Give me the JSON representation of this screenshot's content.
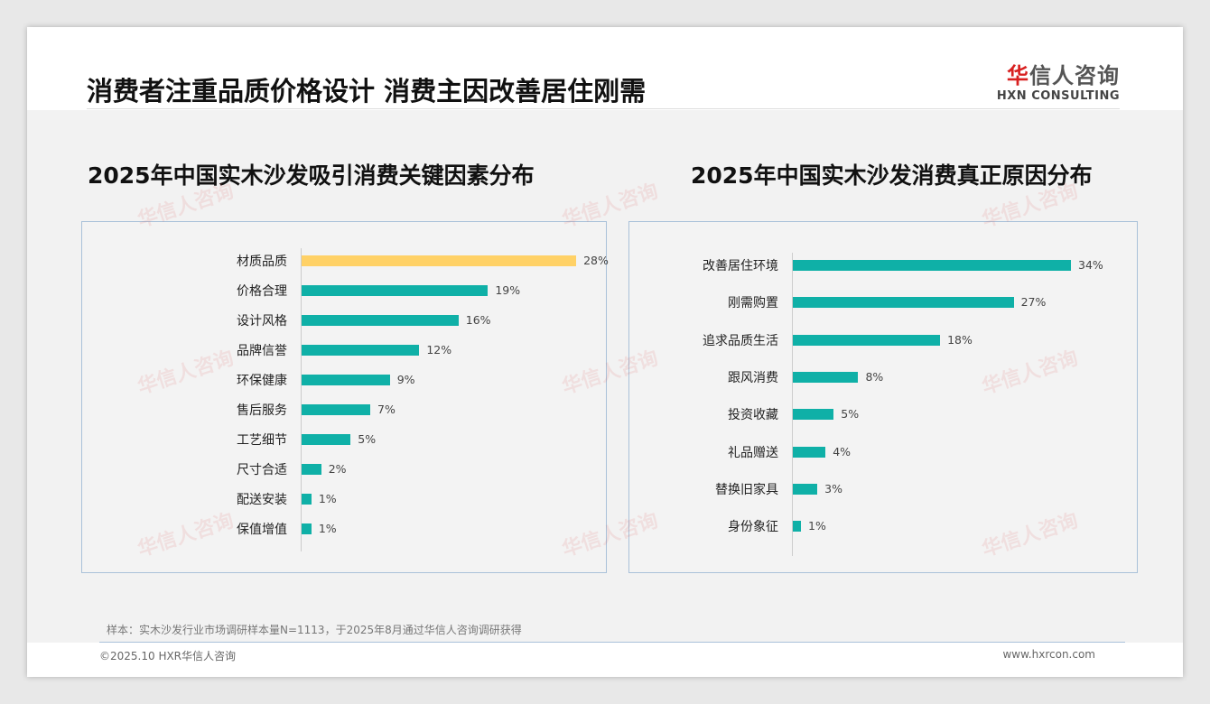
{
  "header": {
    "title": "消费者注重品质价格设计 消费主因改善居住刚需",
    "logo_cn": "华信人咨询",
    "logo_en": "HXN CONSULTING"
  },
  "colors": {
    "bar": "#0fb0a7",
    "highlight": "#ffd166"
  },
  "chart_data": [
    {
      "type": "bar",
      "orientation": "horizontal",
      "title": "2025年中国实木沙发吸引消费关键因素分布",
      "categories": [
        "材质品质",
        "价格合理",
        "设计风格",
        "品牌信誉",
        "环保健康",
        "售后服务",
        "工艺细节",
        "尺寸合适",
        "配送安装",
        "保值增值"
      ],
      "values": [
        28,
        19,
        16,
        12,
        9,
        7,
        5,
        2,
        1,
        1
      ],
      "unit": "%",
      "highlight_index": 0
    },
    {
      "type": "bar",
      "orientation": "horizontal",
      "title": "2025年中国实木沙发消费真正原因分布",
      "categories": [
        "改善居住环境",
        "刚需购置",
        "追求品质生活",
        "跟风消费",
        "投资收藏",
        "礼品赠送",
        "替换旧家具",
        "身份象征"
      ],
      "values": [
        34,
        27,
        18,
        8,
        5,
        4,
        3,
        1
      ],
      "unit": "%"
    }
  ],
  "footer": {
    "note": "样本：实木沙发行业市场调研样本量N=1113，于2025年8月通过华信人咨询调研获得",
    "copyright": "©2025.10 HXR华信人咨询",
    "url": "www.hxrcon.com"
  }
}
